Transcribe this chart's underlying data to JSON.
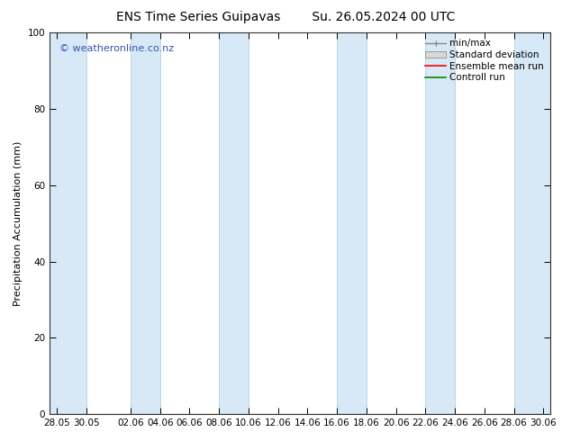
{
  "title_left": "ENS Time Series Guipavas",
  "title_right": "Su. 26.05.2024 00 UTC",
  "ylabel": "Precipitation Accumulation (mm)",
  "watermark": "© weatheronline.co.nz",
  "watermark_color": "#3355aa",
  "ylim": [
    0,
    100
  ],
  "yticks": [
    0,
    20,
    40,
    60,
    80,
    100
  ],
  "xtick_labels": [
    "28.05",
    "30.05",
    "02.06",
    "04.06",
    "06.06",
    "08.06",
    "10.06",
    "12.06",
    "14.06",
    "16.06",
    "18.06",
    "20.06",
    "22.06",
    "24.06",
    "26.06",
    "28.06",
    "30.06"
  ],
  "band_color": "#d0e5f5",
  "band_alpha": 0.85,
  "legend_entries": [
    "min/max",
    "Standard deviation",
    "Ensemble mean run",
    "Controll run"
  ],
  "legend_line_colors": [
    "#888888",
    "#bbbbbb",
    "#ff0000",
    "#008800"
  ],
  "background_color": "#ffffff",
  "plot_bg_color": "#ffffff",
  "title_fontsize": 10,
  "label_fontsize": 8,
  "tick_fontsize": 7.5,
  "legend_fontsize": 7.5
}
